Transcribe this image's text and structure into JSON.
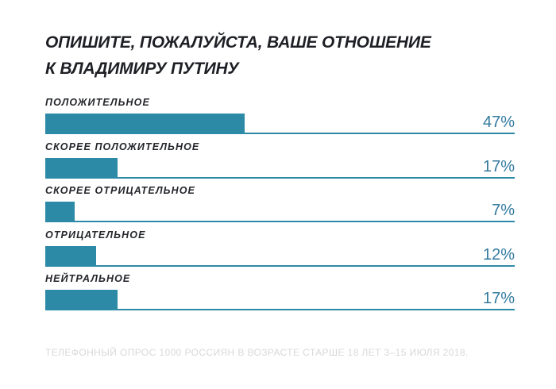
{
  "title": {
    "line1": "ОПИШИТЕ, ПОЖАЛУЙСТА, ВАШЕ ОТНОШЕНИЕ",
    "line2": "К ВЛАДИМИРУ ПУТИНУ"
  },
  "footer": "ТЕЛЕФОННЫЙ ОПРОС 1000 РОССИЯН В ВОЗРАСТЕ СТАРШЕ 18 ЛЕТ 3–15 ИЮЛЯ 2018.",
  "colors": {
    "background": "#FFFFFF",
    "bar": "#2D8AA7",
    "baseline": "#2D8AA7",
    "value_text": "#327A9E",
    "title_text": "#1D1F24",
    "label_text": "#24262B",
    "footer_text": "#D8D8D8"
  },
  "chart_data": {
    "type": "bar",
    "orientation": "horizontal",
    "title": "ОПИШИТЕ, ПОЖАЛУЙСТА, ВАШЕ ОТНОШЕНИЕ К ВЛАДИМИРУ ПУТИНУ",
    "categories": [
      "ПОЛОЖИТЕЛЬНОЕ",
      "СКОРЕЕ ПОЛОЖИТЕЛЬНОЕ",
      "СКОРЕЕ ОТРИЦАТЕЛЬНОЕ",
      "ОТРИЦАТЕЛЬНОЕ",
      "НЕЙТРАЛЬНОЕ"
    ],
    "values": [
      47,
      17,
      7,
      12,
      17
    ],
    "value_labels": [
      "47%",
      "17%",
      "7%",
      "12%",
      "17%"
    ],
    "unit": "%",
    "xlim": [
      0,
      110
    ],
    "grid": false,
    "legend": false,
    "value_label_position": "right-edge",
    "source_note": "ТЕЛЕФОННЫЙ ОПРОС 1000 РОССИЯН В ВОЗРАСТЕ СТАРШЕ 18 ЛЕТ 3–15 ИЮЛЯ 2018."
  }
}
